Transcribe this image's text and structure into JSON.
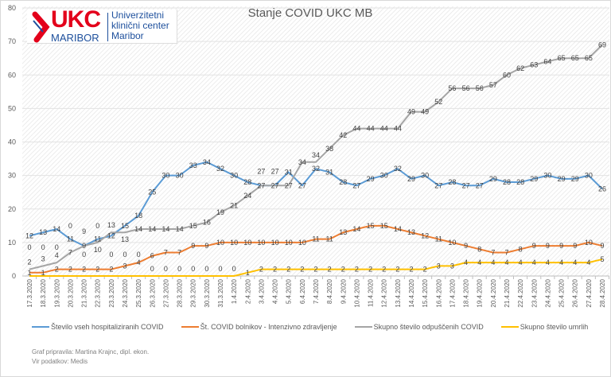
{
  "chart_data": {
    "type": "line",
    "title": "Stanje  COVID UKC MB",
    "ylim": [
      0,
      80
    ],
    "yticks": [
      0,
      10,
      20,
      30,
      40,
      50,
      60,
      70,
      80
    ],
    "grid": true,
    "legend_position": "bottom",
    "categories": [
      "17.3.2020",
      "18.3.2020",
      "19.3.2020",
      "20.3.2020",
      "21.3.2020",
      "22.3.2020",
      "23.3.2020",
      "24.3.2020",
      "25.3.2020",
      "26.3.2020",
      "27.3.2020",
      "28.3.2020",
      "29.3.2020",
      "30.3.2020",
      "31.3.2020",
      "1.4.2020",
      "2.4.2020",
      "3.4.2020",
      "4.4.2020",
      "5.4.2020",
      "6.4.2020",
      "7.4.2020",
      "8.4.2020",
      "9.4.2020",
      "10.4.2020",
      "11.4.2020",
      "12.4.2020",
      "13.4.2020",
      "14.4.2020",
      "15.4.2020",
      "16.4.2020",
      "17.4.2020",
      "18.4.2020",
      "19.4.2020",
      "20.4.2020",
      "21.4.2020",
      "22.4.2020",
      "23.4.2020",
      "24.4.2020",
      "25.4.2020",
      "26.4.2020",
      "27.4.2020",
      "28.4.2020"
    ],
    "series": [
      {
        "name": "Število vseh hospitaliziranih COVID",
        "color": "#5b9bd5",
        "values": [
          12,
          13,
          14,
          11,
          9,
          11,
          12,
          15,
          18,
          25,
          30,
          30,
          33,
          34,
          32,
          30,
          28,
          27,
          27,
          31,
          27,
          32,
          31,
          28,
          27,
          29,
          30,
          32,
          29,
          30,
          27,
          28,
          27,
          27,
          29,
          28,
          28,
          29,
          30,
          29,
          29,
          30,
          26
        ]
      },
      {
        "name": "Št. COVID bolnikov - Intenzivno zdravljenje",
        "color": "#ed7d31",
        "values": [
          1,
          1,
          2,
          2,
          2,
          2,
          2,
          3,
          4,
          6,
          7,
          7,
          9,
          9,
          10,
          10,
          10,
          10,
          10,
          10,
          10,
          11,
          11,
          13,
          14,
          15,
          15,
          14,
          13,
          12,
          11,
          10,
          9,
          8,
          7,
          7,
          8,
          9,
          9,
          9,
          9,
          10,
          9
        ]
      },
      {
        "name": "Skupno število odpuščenih COVID",
        "color": "#a5a5a5",
        "values": [
          2,
          3,
          4,
          7,
          9,
          10,
          13,
          13,
          14,
          14,
          14,
          14,
          15,
          16,
          19,
          21,
          24,
          27,
          27,
          27,
          34,
          34,
          38,
          42,
          44,
          44,
          44,
          44,
          49,
          49,
          52,
          56,
          56,
          56,
          57,
          60,
          62,
          63,
          64,
          65,
          65,
          65,
          69
        ]
      },
      {
        "name": "Skupno število umrlih",
        "color": "#ffc000",
        "values": [
          0,
          0,
          0,
          0,
          0,
          0,
          0,
          0,
          0,
          0,
          0,
          0,
          0,
          0,
          0,
          0,
          1,
          2,
          2,
          2,
          2,
          2,
          2,
          2,
          2,
          2,
          2,
          2,
          2,
          2,
          3,
          3,
          4,
          4,
          4,
          4,
          4,
          4,
          4,
          4,
          4,
          4,
          5
        ]
      }
    ]
  },
  "logo": {
    "brand": "UKC",
    "city": "MARIBOR",
    "line1": "Univerzitetni",
    "line2": "klinični center",
    "line3": "Maribor"
  },
  "footer": {
    "author": "Graf pripravila: Martina Krajnc, dipl. ekon.",
    "source": "Vir podatkov: Medis"
  }
}
